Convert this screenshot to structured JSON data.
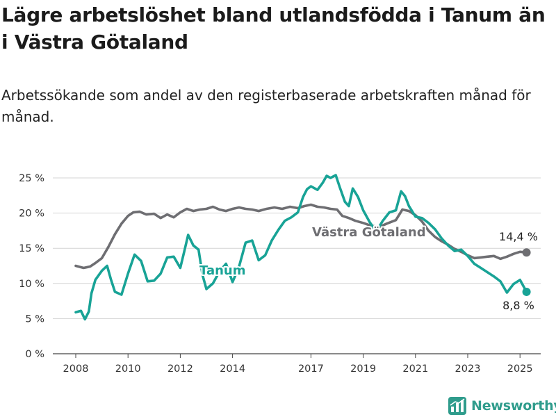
{
  "title": "Lägre arbetslöshet bland utlandsfödda i Tanum än i Västra Götaland",
  "subtitle": "Arbetssökande som andel av den registerbaserade arbetskraften månad för månad.",
  "brand": {
    "name": "Newsworthy",
    "icon": "bar-chart-logo-icon"
  },
  "chart_data": {
    "type": "line",
    "title": "Lägre arbetslöshet bland utlandsfödda i Tanum än i Västra Götaland",
    "subtitle": "Arbetssökande som andel av den registerbaserade arbetskraften månad för månad.",
    "xlabel": "",
    "ylabel": "",
    "xlim": [
      2008,
      2025.25
    ],
    "ylim": [
      0,
      25
    ],
    "x_ticks": [
      2008,
      2010,
      2012,
      2014,
      2017,
      2019,
      2021,
      2023,
      2025
    ],
    "y_ticks": [
      {
        "value": 0,
        "label": "0 %"
      },
      {
        "value": 5,
        "label": "5 %"
      },
      {
        "value": 10,
        "label": "10 %"
      },
      {
        "value": 15,
        "label": "15 %"
      },
      {
        "value": 20,
        "label": "20 %"
      },
      {
        "value": 25,
        "label": "25 %"
      }
    ],
    "grid": true,
    "legend": "none",
    "series": [
      {
        "name": "Västra Götaland",
        "color": "#6e6e72",
        "label_value": "14,4 %",
        "points": [
          [
            2008.0,
            12.5
          ],
          [
            2008.3,
            12.2
          ],
          [
            2008.55,
            12.4
          ],
          [
            2008.75,
            12.9
          ],
          [
            2009.0,
            13.6
          ],
          [
            2009.25,
            15.2
          ],
          [
            2009.5,
            17.0
          ],
          [
            2009.75,
            18.5
          ],
          [
            2010.0,
            19.6
          ],
          [
            2010.2,
            20.1
          ],
          [
            2010.45,
            20.2
          ],
          [
            2010.7,
            19.8
          ],
          [
            2011.0,
            19.9
          ],
          [
            2011.25,
            19.3
          ],
          [
            2011.5,
            19.8
          ],
          [
            2011.75,
            19.4
          ],
          [
            2012.0,
            20.1
          ],
          [
            2012.25,
            20.6
          ],
          [
            2012.5,
            20.3
          ],
          [
            2012.75,
            20.5
          ],
          [
            2013.0,
            20.6
          ],
          [
            2013.25,
            20.9
          ],
          [
            2013.5,
            20.5
          ],
          [
            2013.75,
            20.3
          ],
          [
            2014.0,
            20.6
          ],
          [
            2014.25,
            20.8
          ],
          [
            2014.5,
            20.6
          ],
          [
            2014.75,
            20.5
          ],
          [
            2015.0,
            20.3
          ],
          [
            2015.3,
            20.6
          ],
          [
            2015.6,
            20.8
          ],
          [
            2015.9,
            20.6
          ],
          [
            2016.2,
            20.9
          ],
          [
            2016.5,
            20.7
          ],
          [
            2016.75,
            21.0
          ],
          [
            2017.0,
            21.2
          ],
          [
            2017.25,
            20.9
          ],
          [
            2017.5,
            20.8
          ],
          [
            2017.75,
            20.6
          ],
          [
            2018.0,
            20.5
          ],
          [
            2018.2,
            19.6
          ],
          [
            2018.45,
            19.3
          ],
          [
            2018.7,
            18.9
          ],
          [
            2019.0,
            18.6
          ],
          [
            2019.3,
            18.2
          ],
          [
            2019.6,
            18.0
          ],
          [
            2019.9,
            18.5
          ],
          [
            2020.25,
            19.0
          ],
          [
            2020.5,
            20.5
          ],
          [
            2020.75,
            20.3
          ],
          [
            2021.0,
            19.7
          ],
          [
            2021.25,
            18.8
          ],
          [
            2021.5,
            17.5
          ],
          [
            2021.75,
            16.6
          ],
          [
            2022.0,
            16.0
          ],
          [
            2022.25,
            15.5
          ],
          [
            2022.5,
            14.9
          ],
          [
            2022.75,
            14.5
          ],
          [
            2023.0,
            14.0
          ],
          [
            2023.25,
            13.6
          ],
          [
            2023.5,
            13.7
          ],
          [
            2023.75,
            13.8
          ],
          [
            2024.0,
            13.9
          ],
          [
            2024.25,
            13.5
          ],
          [
            2024.5,
            13.8
          ],
          [
            2024.75,
            14.2
          ],
          [
            2025.0,
            14.5
          ],
          [
            2025.25,
            14.4
          ]
        ]
      },
      {
        "name": "Tanum",
        "color": "#18a396",
        "label_value": "8,8 %",
        "points": [
          [
            2008.0,
            5.9
          ],
          [
            2008.2,
            6.1
          ],
          [
            2008.35,
            4.9
          ],
          [
            2008.5,
            6.0
          ],
          [
            2008.6,
            8.6
          ],
          [
            2008.75,
            10.5
          ],
          [
            2009.0,
            11.8
          ],
          [
            2009.2,
            12.5
          ],
          [
            2009.35,
            10.5
          ],
          [
            2009.5,
            8.8
          ],
          [
            2009.75,
            8.4
          ],
          [
            2010.0,
            11.4
          ],
          [
            2010.25,
            14.1
          ],
          [
            2010.5,
            13.2
          ],
          [
            2010.75,
            10.3
          ],
          [
            2011.0,
            10.4
          ],
          [
            2011.25,
            11.4
          ],
          [
            2011.5,
            13.7
          ],
          [
            2011.75,
            13.8
          ],
          [
            2012.0,
            12.2
          ],
          [
            2012.15,
            14.5
          ],
          [
            2012.3,
            16.9
          ],
          [
            2012.5,
            15.4
          ],
          [
            2012.7,
            14.8
          ],
          [
            2012.85,
            11.2
          ],
          [
            2013.0,
            9.2
          ],
          [
            2013.25,
            10.0
          ],
          [
            2013.5,
            11.7
          ],
          [
            2013.75,
            12.8
          ],
          [
            2014.0,
            10.2
          ],
          [
            2014.25,
            12.4
          ],
          [
            2014.5,
            15.8
          ],
          [
            2014.75,
            16.1
          ],
          [
            2015.0,
            13.3
          ],
          [
            2015.25,
            14.0
          ],
          [
            2015.5,
            16.1
          ],
          [
            2015.75,
            17.6
          ],
          [
            2016.0,
            18.9
          ],
          [
            2016.25,
            19.4
          ],
          [
            2016.5,
            20.1
          ],
          [
            2016.7,
            22.3
          ],
          [
            2016.85,
            23.4
          ],
          [
            2017.0,
            23.8
          ],
          [
            2017.25,
            23.3
          ],
          [
            2017.45,
            24.3
          ],
          [
            2017.6,
            25.3
          ],
          [
            2017.75,
            25.0
          ],
          [
            2017.95,
            25.4
          ],
          [
            2018.1,
            23.7
          ],
          [
            2018.3,
            21.6
          ],
          [
            2018.45,
            21.0
          ],
          [
            2018.6,
            23.5
          ],
          [
            2018.8,
            22.3
          ],
          [
            2019.0,
            20.4
          ],
          [
            2019.25,
            18.7
          ],
          [
            2019.5,
            17.4
          ],
          [
            2019.75,
            18.9
          ],
          [
            2020.0,
            20.1
          ],
          [
            2020.25,
            20.4
          ],
          [
            2020.45,
            23.1
          ],
          [
            2020.6,
            22.4
          ],
          [
            2020.75,
            21.0
          ],
          [
            2021.0,
            19.5
          ],
          [
            2021.25,
            19.3
          ],
          [
            2021.5,
            18.6
          ],
          [
            2021.75,
            17.7
          ],
          [
            2022.0,
            16.4
          ],
          [
            2022.25,
            15.4
          ],
          [
            2022.5,
            14.6
          ],
          [
            2022.75,
            14.8
          ],
          [
            2023.0,
            13.9
          ],
          [
            2023.25,
            12.8
          ],
          [
            2023.5,
            12.2
          ],
          [
            2023.75,
            11.6
          ],
          [
            2024.0,
            11.0
          ],
          [
            2024.25,
            10.3
          ],
          [
            2024.5,
            8.7
          ],
          [
            2024.75,
            9.9
          ],
          [
            2025.0,
            10.5
          ],
          [
            2025.25,
            8.8
          ]
        ]
      }
    ]
  }
}
